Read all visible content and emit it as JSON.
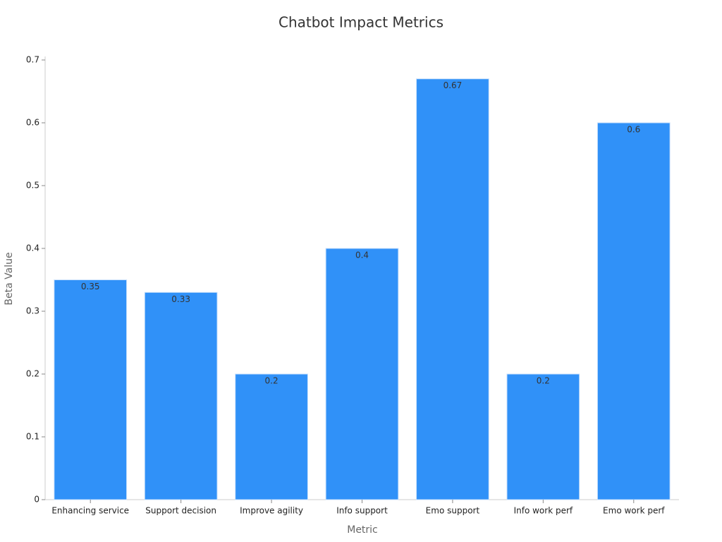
{
  "chart_data": {
    "type": "bar",
    "title": "Chatbot Impact Metrics",
    "xlabel": "Metric",
    "ylabel": "Beta Value",
    "categories": [
      "Enhancing service",
      "Support decision",
      "Improve agility",
      "Info support",
      "Emo support",
      "Info work perf",
      "Emo work perf"
    ],
    "values": [
      0.35,
      0.33,
      0.2,
      0.4,
      0.67,
      0.2,
      0.6
    ],
    "color": "#3091f8",
    "ylim": [
      0,
      0.7
    ],
    "yticks": [
      0,
      0.1,
      0.2,
      0.3,
      0.4,
      0.5,
      0.6,
      0.7
    ],
    "grid": false
  }
}
